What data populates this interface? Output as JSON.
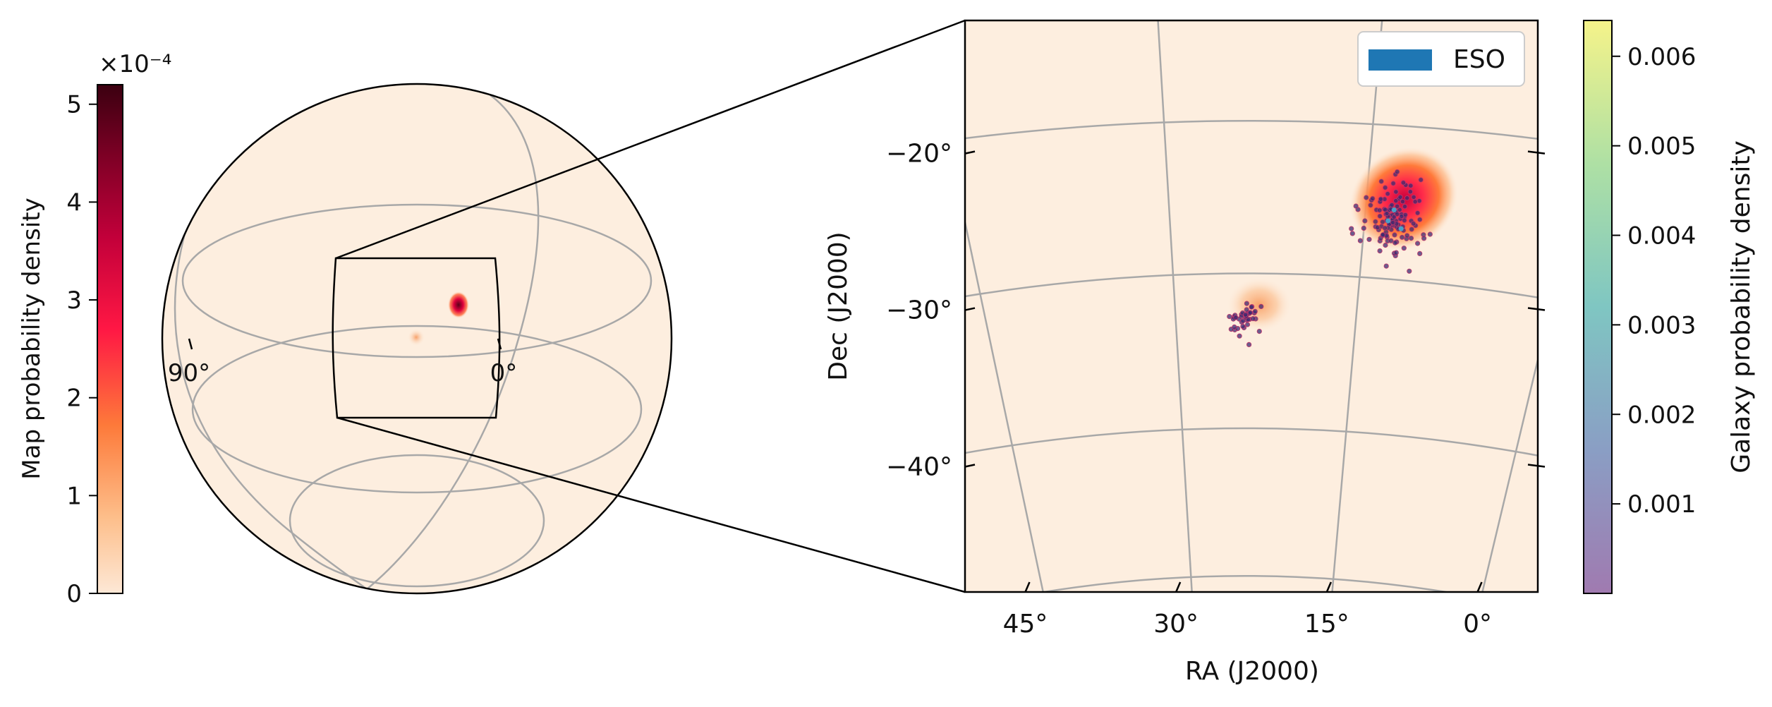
{
  "chart_data": [
    {
      "type": "heatmap",
      "projection": "orthographic globe",
      "colorbar": {
        "label": "Map probability density",
        "exponent": "×10⁻⁴",
        "ticks": [
          0,
          1,
          2,
          3,
          4,
          5
        ],
        "range": [
          0,
          5.2
        ],
        "colormap": "cylon"
      },
      "grid": true,
      "ra_labels": [
        "90°",
        "0°"
      ],
      "zoom_box": true
    },
    {
      "type": "scatter",
      "xlabel": "RA (J2000)",
      "ylabel": "Dec (J2000)",
      "xticks": [
        {
          "ra": 45,
          "label": "45°"
        },
        {
          "ra": 30,
          "label": "30°"
        },
        {
          "ra": 15,
          "label": "15°"
        },
        {
          "ra": 0,
          "label": "0°"
        }
      ],
      "yticks": [
        {
          "dec": -20,
          "label": "−20°"
        },
        {
          "dec": -30,
          "label": "−30°"
        },
        {
          "dec": -40,
          "label": "−40°"
        }
      ],
      "xlim": [
        51,
        -6
      ],
      "ylim": [
        -48,
        -11.5
      ],
      "legend": {
        "entries": [
          {
            "label": "ESO",
            "color": "#1f77b4"
          }
        ],
        "placement": "top-right"
      },
      "colorbar": {
        "label": "Galaxy probability density",
        "ticks": [
          {
            "value": 0.001,
            "label": "0.001"
          },
          {
            "value": 0.002,
            "label": "0.002"
          },
          {
            "value": 0.003,
            "label": "0.003"
          },
          {
            "value": 0.004,
            "label": "0.004"
          },
          {
            "value": 0.005,
            "label": "0.005"
          },
          {
            "value": 0.006,
            "label": "0.006"
          }
        ],
        "range": [
          0,
          0.0064
        ],
        "colormap": "viridis"
      },
      "clusters": [
        {
          "ra": 8.5,
          "dec": -24.0,
          "ra_spread": 2.6,
          "dec_spread": 2.3,
          "count": 130,
          "density_max": 0.0064
        },
        {
          "ra": 23.2,
          "dec": -30.5,
          "ra_spread": 1.4,
          "dec_spread": 1.0,
          "count": 45,
          "density_max": 0.0011
        }
      ]
    }
  ]
}
